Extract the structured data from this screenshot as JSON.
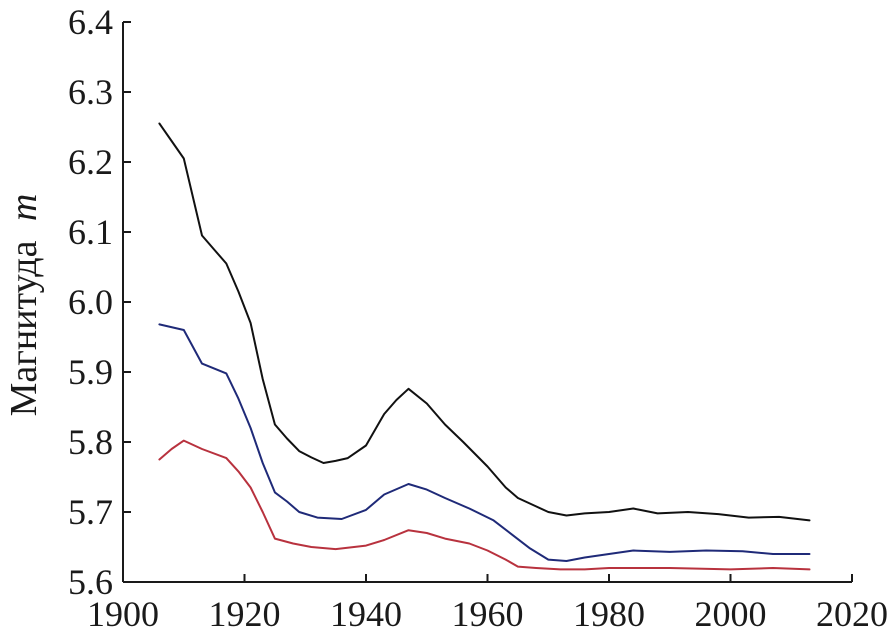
{
  "chart_data": {
    "type": "line",
    "title": "",
    "xlabel": "",
    "ylabel": "Магнитуда",
    "ylabel_symbol": "m",
    "xlim": [
      1900,
      2020
    ],
    "ylim": [
      5.6,
      6.4
    ],
    "x_ticks": [
      "1900",
      "1920",
      "1940",
      "1960",
      "1980",
      "2000",
      "2020"
    ],
    "y_ticks": [
      "5.6",
      "5.7",
      "5.8",
      "5.9",
      "6.0",
      "6.1",
      "6.2",
      "6.3",
      "6.4"
    ],
    "grid": false,
    "legend": "none",
    "series": [
      {
        "color": "#111111",
        "points": [
          [
            1906,
            6.255
          ],
          [
            1908,
            6.23
          ],
          [
            1910,
            6.205
          ],
          [
            1913,
            6.095
          ],
          [
            1915,
            6.075
          ],
          [
            1917,
            6.055
          ],
          [
            1919,
            6.015
          ],
          [
            1921,
            5.97
          ],
          [
            1923,
            5.89
          ],
          [
            1925,
            5.825
          ],
          [
            1927,
            5.805
          ],
          [
            1929,
            5.787
          ],
          [
            1931,
            5.778
          ],
          [
            1933,
            5.77
          ],
          [
            1935,
            5.773
          ],
          [
            1937,
            5.777
          ],
          [
            1940,
            5.795
          ],
          [
            1943,
            5.84
          ],
          [
            1945,
            5.86
          ],
          [
            1947,
            5.876
          ],
          [
            1950,
            5.855
          ],
          [
            1953,
            5.825
          ],
          [
            1956,
            5.8
          ],
          [
            1960,
            5.765
          ],
          [
            1963,
            5.735
          ],
          [
            1965,
            5.72
          ],
          [
            1968,
            5.708
          ],
          [
            1970,
            5.7
          ],
          [
            1973,
            5.695
          ],
          [
            1976,
            5.698
          ],
          [
            1980,
            5.7
          ],
          [
            1984,
            5.705
          ],
          [
            1988,
            5.698
          ],
          [
            1993,
            5.7
          ],
          [
            1998,
            5.697
          ],
          [
            2003,
            5.692
          ],
          [
            2008,
            5.693
          ],
          [
            2013,
            5.688
          ]
        ]
      },
      {
        "color": "#1f2a78",
        "points": [
          [
            1906,
            5.968
          ],
          [
            1910,
            5.96
          ],
          [
            1913,
            5.912
          ],
          [
            1917,
            5.898
          ],
          [
            1919,
            5.862
          ],
          [
            1921,
            5.82
          ],
          [
            1923,
            5.77
          ],
          [
            1925,
            5.728
          ],
          [
            1927,
            5.715
          ],
          [
            1929,
            5.7
          ],
          [
            1932,
            5.692
          ],
          [
            1936,
            5.69
          ],
          [
            1940,
            5.703
          ],
          [
            1943,
            5.725
          ],
          [
            1947,
            5.74
          ],
          [
            1950,
            5.732
          ],
          [
            1953,
            5.72
          ],
          [
            1957,
            5.705
          ],
          [
            1961,
            5.688
          ],
          [
            1964,
            5.668
          ],
          [
            1967,
            5.648
          ],
          [
            1970,
            5.632
          ],
          [
            1973,
            5.63
          ],
          [
            1976,
            5.635
          ],
          [
            1980,
            5.64
          ],
          [
            1984,
            5.645
          ],
          [
            1990,
            5.643
          ],
          [
            1996,
            5.645
          ],
          [
            2002,
            5.644
          ],
          [
            2007,
            5.64
          ],
          [
            2013,
            5.64
          ]
        ]
      },
      {
        "color": "#b8323e",
        "points": [
          [
            1906,
            5.775
          ],
          [
            1908,
            5.79
          ],
          [
            1910,
            5.802
          ],
          [
            1913,
            5.79
          ],
          [
            1917,
            5.777
          ],
          [
            1919,
            5.758
          ],
          [
            1921,
            5.735
          ],
          [
            1923,
            5.7
          ],
          [
            1925,
            5.662
          ],
          [
            1928,
            5.655
          ],
          [
            1931,
            5.65
          ],
          [
            1935,
            5.647
          ],
          [
            1940,
            5.652
          ],
          [
            1943,
            5.66
          ],
          [
            1947,
            5.674
          ],
          [
            1950,
            5.67
          ],
          [
            1953,
            5.662
          ],
          [
            1957,
            5.655
          ],
          [
            1960,
            5.645
          ],
          [
            1963,
            5.632
          ],
          [
            1965,
            5.622
          ],
          [
            1968,
            5.62
          ],
          [
            1972,
            5.618
          ],
          [
            1976,
            5.618
          ],
          [
            1980,
            5.62
          ],
          [
            1990,
            5.62
          ],
          [
            2000,
            5.618
          ],
          [
            2007,
            5.62
          ],
          [
            2013,
            5.618
          ]
        ]
      }
    ]
  }
}
